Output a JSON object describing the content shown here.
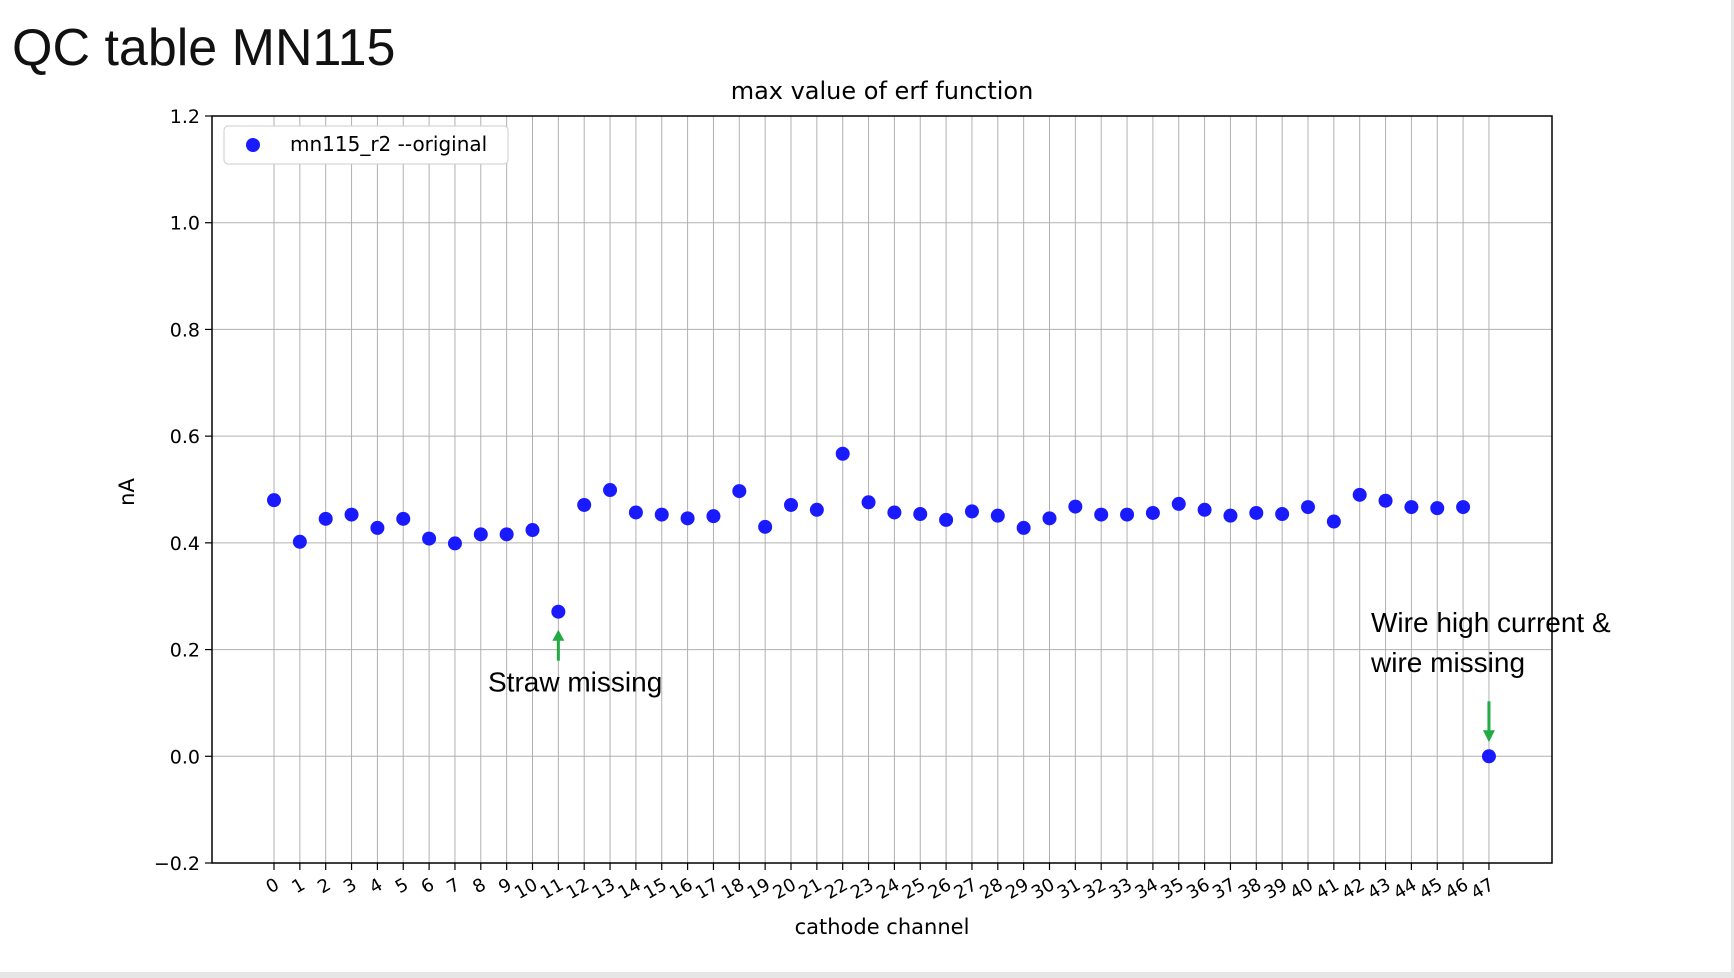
{
  "slide": {
    "title": "QC table MN115"
  },
  "colors": {
    "marker": "#1a1aff",
    "arrow": "#22aa44",
    "grid": "#b0b0b0",
    "axis": "#000000"
  },
  "chart_data": {
    "type": "scatter",
    "title": "max value of erf function",
    "xlabel": "cathode channel",
    "ylabel": "nA",
    "ylim": [
      -0.2,
      1.2
    ],
    "y_ticks": [
      -0.2,
      0.0,
      0.2,
      0.4,
      0.6,
      0.8,
      1.0,
      1.2
    ],
    "y_tick_labels": [
      "−0.2",
      "0.0",
      "0.2",
      "0.4",
      "0.6",
      "0.8",
      "1.0",
      "1.2"
    ],
    "x_ticks": [
      0,
      1,
      2,
      3,
      4,
      5,
      6,
      7,
      8,
      9,
      10,
      11,
      12,
      13,
      14,
      15,
      16,
      17,
      18,
      19,
      20,
      21,
      22,
      23,
      24,
      25,
      26,
      27,
      28,
      29,
      30,
      31,
      32,
      33,
      34,
      35,
      36,
      37,
      38,
      39,
      40,
      41,
      42,
      43,
      44,
      45,
      46,
      47
    ],
    "grid": true,
    "legend_position": "top-left",
    "series": [
      {
        "name": "mn115_r2 --original",
        "x": [
          0,
          1,
          2,
          3,
          4,
          5,
          6,
          7,
          8,
          9,
          10,
          11,
          12,
          13,
          14,
          15,
          16,
          17,
          18,
          19,
          20,
          21,
          22,
          23,
          24,
          25,
          26,
          27,
          28,
          29,
          30,
          31,
          32,
          33,
          34,
          35,
          36,
          37,
          38,
          39,
          40,
          41,
          42,
          43,
          44,
          45,
          46,
          47
        ],
        "y": [
          0.48,
          0.402,
          0.445,
          0.453,
          0.428,
          0.445,
          0.408,
          0.399,
          0.416,
          0.416,
          0.424,
          0.271,
          0.471,
          0.499,
          0.457,
          0.453,
          0.446,
          0.45,
          0.497,
          0.43,
          0.471,
          0.462,
          0.567,
          0.476,
          0.457,
          0.454,
          0.443,
          0.459,
          0.451,
          0.428,
          0.446,
          0.468,
          0.453,
          0.453,
          0.456,
          0.473,
          0.462,
          0.451,
          0.456,
          0.454,
          0.467,
          0.44,
          0.49,
          0.479,
          0.467,
          0.465,
          0.467,
          0.0
        ]
      }
    ],
    "annotations": [
      {
        "lines": [
          "Straw missing"
        ],
        "target_x": 11,
        "target_y": 0.271
      },
      {
        "lines": [
          "Wire high current &",
          "wire missing"
        ],
        "target_x": 47,
        "target_y": 0.0
      }
    ]
  }
}
